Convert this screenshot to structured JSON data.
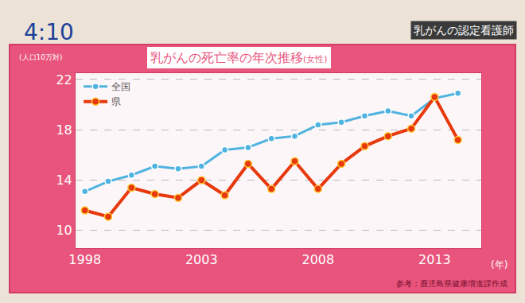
{
  "screen": {
    "clock": "4:10",
    "caption": "乳がんの認定看護師"
  },
  "chart_data": {
    "type": "line",
    "title": "乳がんの死亡率の年次推移",
    "subtitle": "(女性)",
    "y_label": "(人口10万対)",
    "x_label": "(年)",
    "source": "参考：鹿児島県健康増進課作成",
    "x": [
      1998,
      1999,
      2000,
      2001,
      2002,
      2003,
      2004,
      2005,
      2006,
      2007,
      2008,
      2009,
      2010,
      2011,
      2012,
      2013,
      2014
    ],
    "series": [
      {
        "name": "全国",
        "color": "#4fb3e0",
        "marker": "circle",
        "line_style": "solid",
        "values": [
          13.1,
          13.9,
          14.4,
          15.1,
          14.9,
          15.1,
          16.4,
          16.6,
          17.3,
          17.5,
          18.4,
          18.6,
          19.1,
          19.5,
          19.1,
          20.5,
          20.9
        ]
      },
      {
        "name": "県",
        "color": "#e8380d",
        "marker": "circle",
        "line_style": "solid",
        "values": [
          11.6,
          11.1,
          13.4,
          12.9,
          12.6,
          14.0,
          12.8,
          15.3,
          13.3,
          15.5,
          13.3,
          15.3,
          16.7,
          17.5,
          18.1,
          20.6,
          17.2
        ]
      }
    ],
    "xlim": [
      1997.6,
      2015
    ],
    "xticks": [
      1998,
      2003,
      2008,
      2013
    ],
    "ylim": [
      8.6,
      22.5
    ],
    "yticks": [
      10,
      14,
      18,
      22
    ],
    "grid": true,
    "legend": "upper left"
  }
}
